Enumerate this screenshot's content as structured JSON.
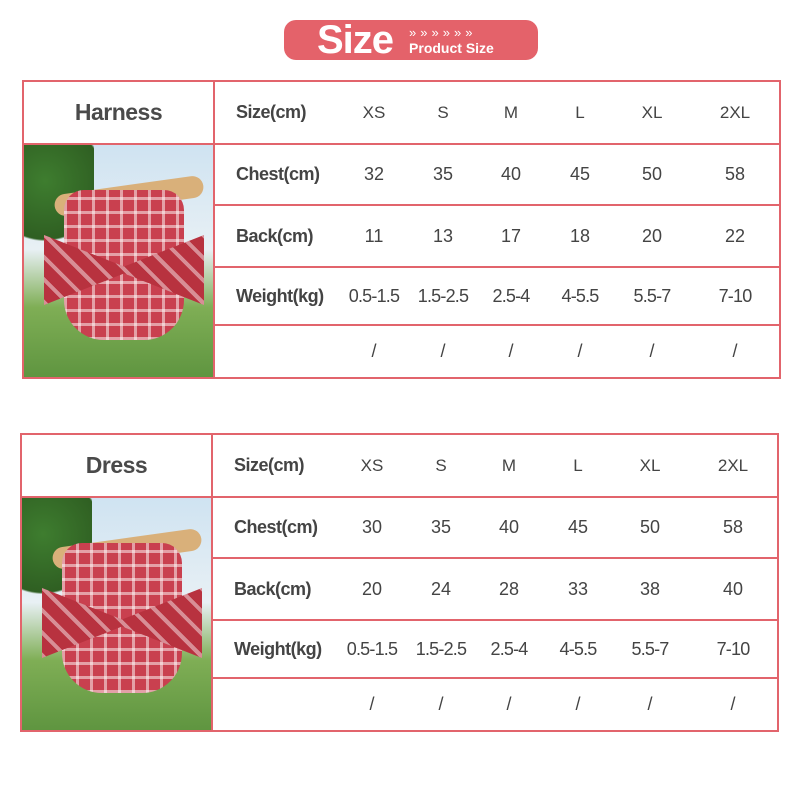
{
  "banner": {
    "title": "Size",
    "chevrons": "»»»»»»",
    "subtitle": "Product Size"
  },
  "colors": {
    "accent": "#e4626a",
    "border": "#e2646c"
  },
  "tables": [
    {
      "name": "Harness",
      "photo": "harness-photo",
      "rows": [
        {
          "label": "Size(cm)",
          "values": [
            "XS",
            "S",
            "M",
            "L",
            "XL",
            "2XL"
          ]
        },
        {
          "label": "Chest(cm)",
          "values": [
            "32",
            "35",
            "40",
            "45",
            "50",
            "58"
          ]
        },
        {
          "label": "Back(cm)",
          "values": [
            "11",
            "13",
            "17",
            "18",
            "20",
            "22"
          ]
        },
        {
          "label": "Weight(kg)",
          "values": [
            "0.5-1.5",
            "1.5-2.5",
            "2.5-4",
            "4-5.5",
            "5.5-7",
            "7-10"
          ]
        },
        {
          "label": "",
          "values": [
            "/",
            "/",
            "/",
            "/",
            "/",
            "/"
          ]
        }
      ]
    },
    {
      "name": "Dress",
      "photo": "dress-photo",
      "rows": [
        {
          "label": "Size(cm)",
          "values": [
            "XS",
            "S",
            "M",
            "L",
            "XL",
            "2XL"
          ]
        },
        {
          "label": "Chest(cm)",
          "values": [
            "30",
            "35",
            "40",
            "45",
            "50",
            "58"
          ]
        },
        {
          "label": "Back(cm)",
          "values": [
            "20",
            "24",
            "28",
            "33",
            "38",
            "40"
          ]
        },
        {
          "label": "Weight(kg)",
          "values": [
            "0.5-1.5",
            "1.5-2.5",
            "2.5-4",
            "4-5.5",
            "5.5-7",
            "7-10"
          ]
        },
        {
          "label": "",
          "values": [
            "/",
            "/",
            "/",
            "/",
            "/",
            "/"
          ]
        }
      ]
    }
  ]
}
